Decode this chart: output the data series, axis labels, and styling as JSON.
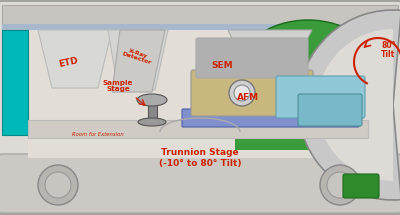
{
  "bg_outer": "#d4d0cc",
  "bg_chamber": "#e8e4df",
  "bg_top_bar": "#c8c4c0",
  "bg_cyan_left": "#00c8c8",
  "bg_green": "#2d8b2d",
  "bg_blue_stripe": "#b0c4de",
  "labels": {
    "ETD": "ETD",
    "XRay": "X-Ray\nDetector",
    "SEM": "SEM",
    "AFM": "AFM",
    "Sample": "Sample\nStage",
    "Room": "Room for Extension",
    "Trunnion": "Trunnion Stage\n(-10° to 80° Tilt)",
    "Tilt": "80°\nTilt"
  },
  "label_color": "#cc2200",
  "fig_bg": "#d4d0cc",
  "title": ""
}
